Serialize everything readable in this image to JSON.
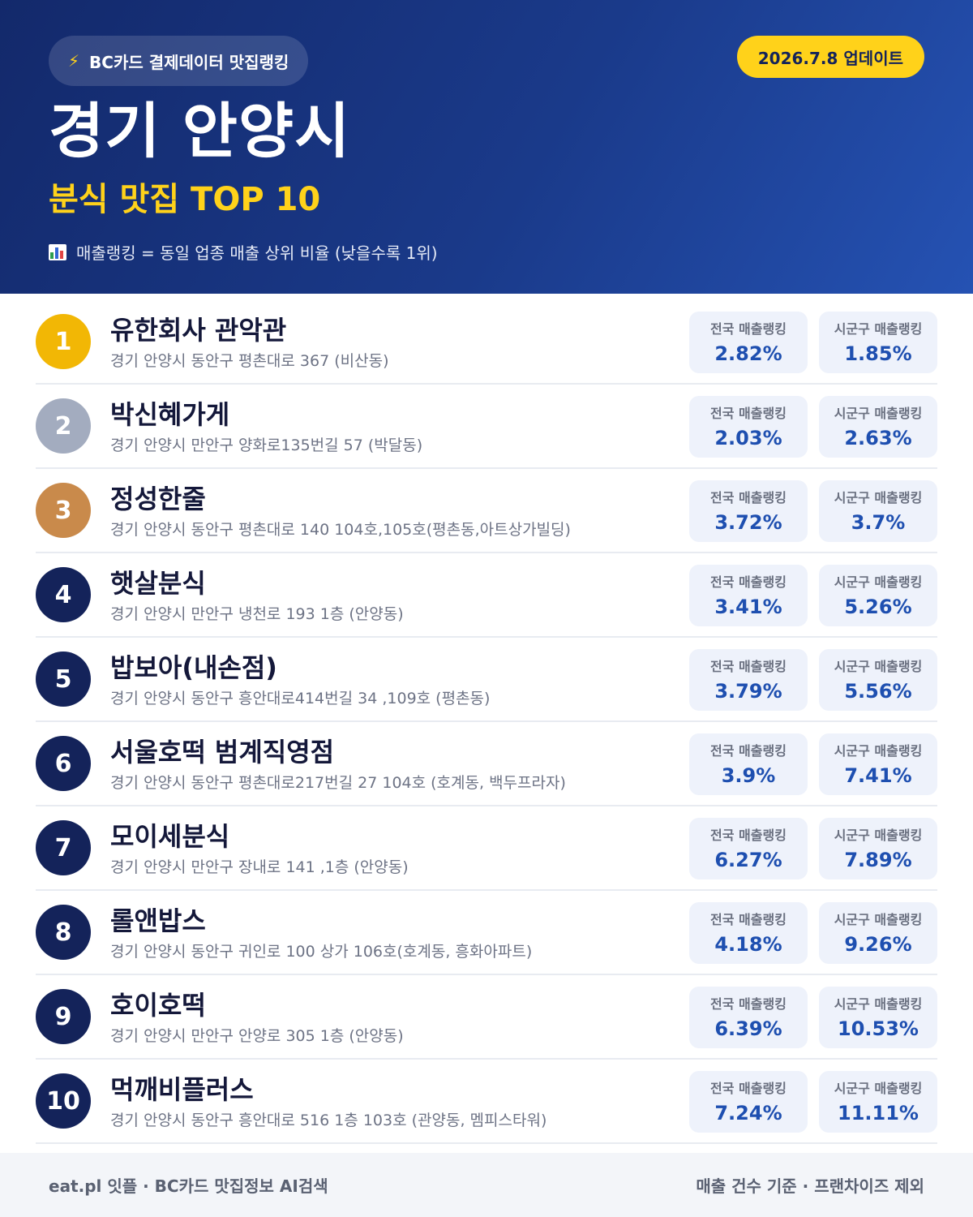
{
  "header": {
    "brand_icon": "lightning-icon",
    "brand_label": "BC카드 결제데이터 맛집랭킹",
    "update_label": "2026.7.8 업데이트",
    "title": "경기 안양시",
    "subtitle": "분식 맛집 TOP 10",
    "note_icon": "bar-chart-icon",
    "note": "매출랭킹 = 동일 업종 매출 상위 비율 (낮을수록 1위)"
  },
  "colors": {
    "header_bg": "#1a3a8a",
    "accent_yellow": "#ffd21a",
    "gold": "#f2b705",
    "silver": "#a3acbf",
    "bronze": "#c98a4b",
    "navy": "#14235a",
    "value_blue": "#1e4fb0"
  },
  "stat_labels": {
    "national": "전국 매출랭킹",
    "local": "시군구 매출랭킹"
  },
  "restaurants": [
    {
      "rank": "1",
      "name": "유한회사 관악관",
      "address": "경기 안양시 동안구 평촌대로 367 (비산동)",
      "national": "2.82%",
      "local": "1.85%"
    },
    {
      "rank": "2",
      "name": "박신혜가게",
      "address": "경기 안양시 만안구 양화로135번길 57 (박달동)",
      "national": "2.03%",
      "local": "2.63%"
    },
    {
      "rank": "3",
      "name": "정성한줄",
      "address": "경기 안양시 동안구 평촌대로 140 104호,105호(평촌동,아트상가빌딩)",
      "national": "3.72%",
      "local": "3.7%"
    },
    {
      "rank": "4",
      "name": "햇살분식",
      "address": "경기 안양시 만안구 냉천로 193 1층 (안양동)",
      "national": "3.41%",
      "local": "5.26%"
    },
    {
      "rank": "5",
      "name": "밥보아(내손점)",
      "address": "경기 안양시 동안구 흥안대로414번길 34 ,109호 (평촌동)",
      "national": "3.79%",
      "local": "5.56%"
    },
    {
      "rank": "6",
      "name": "서울호떡 범계직영점",
      "address": "경기 안양시 동안구 평촌대로217번길 27 104호 (호계동, 백두프라자)",
      "national": "3.9%",
      "local": "7.41%"
    },
    {
      "rank": "7",
      "name": "모이세분식",
      "address": "경기 안양시 만안구 장내로 141 ,1층 (안양동)",
      "national": "6.27%",
      "local": "7.89%"
    },
    {
      "rank": "8",
      "name": "롤앤밥스",
      "address": "경기 안양시 동안구 귀인로 100 상가 106호(호계동, 흥화아파트)",
      "national": "4.18%",
      "local": "9.26%"
    },
    {
      "rank": "9",
      "name": "호이호떡",
      "address": "경기 안양시 만안구 안양로 305 1층 (안양동)",
      "national": "6.39%",
      "local": "10.53%"
    },
    {
      "rank": "10",
      "name": "먹깨비플러스",
      "address": "경기 안양시 동안구 흥안대로 516 1층 103호 (관양동, 멤피스타워)",
      "national": "7.24%",
      "local": "11.11%"
    }
  ],
  "footer": {
    "left": "eat.pl 잇플 · BC카드 맛집정보 AI검색",
    "right": "매출 건수 기준 · 프랜차이즈 제외"
  }
}
